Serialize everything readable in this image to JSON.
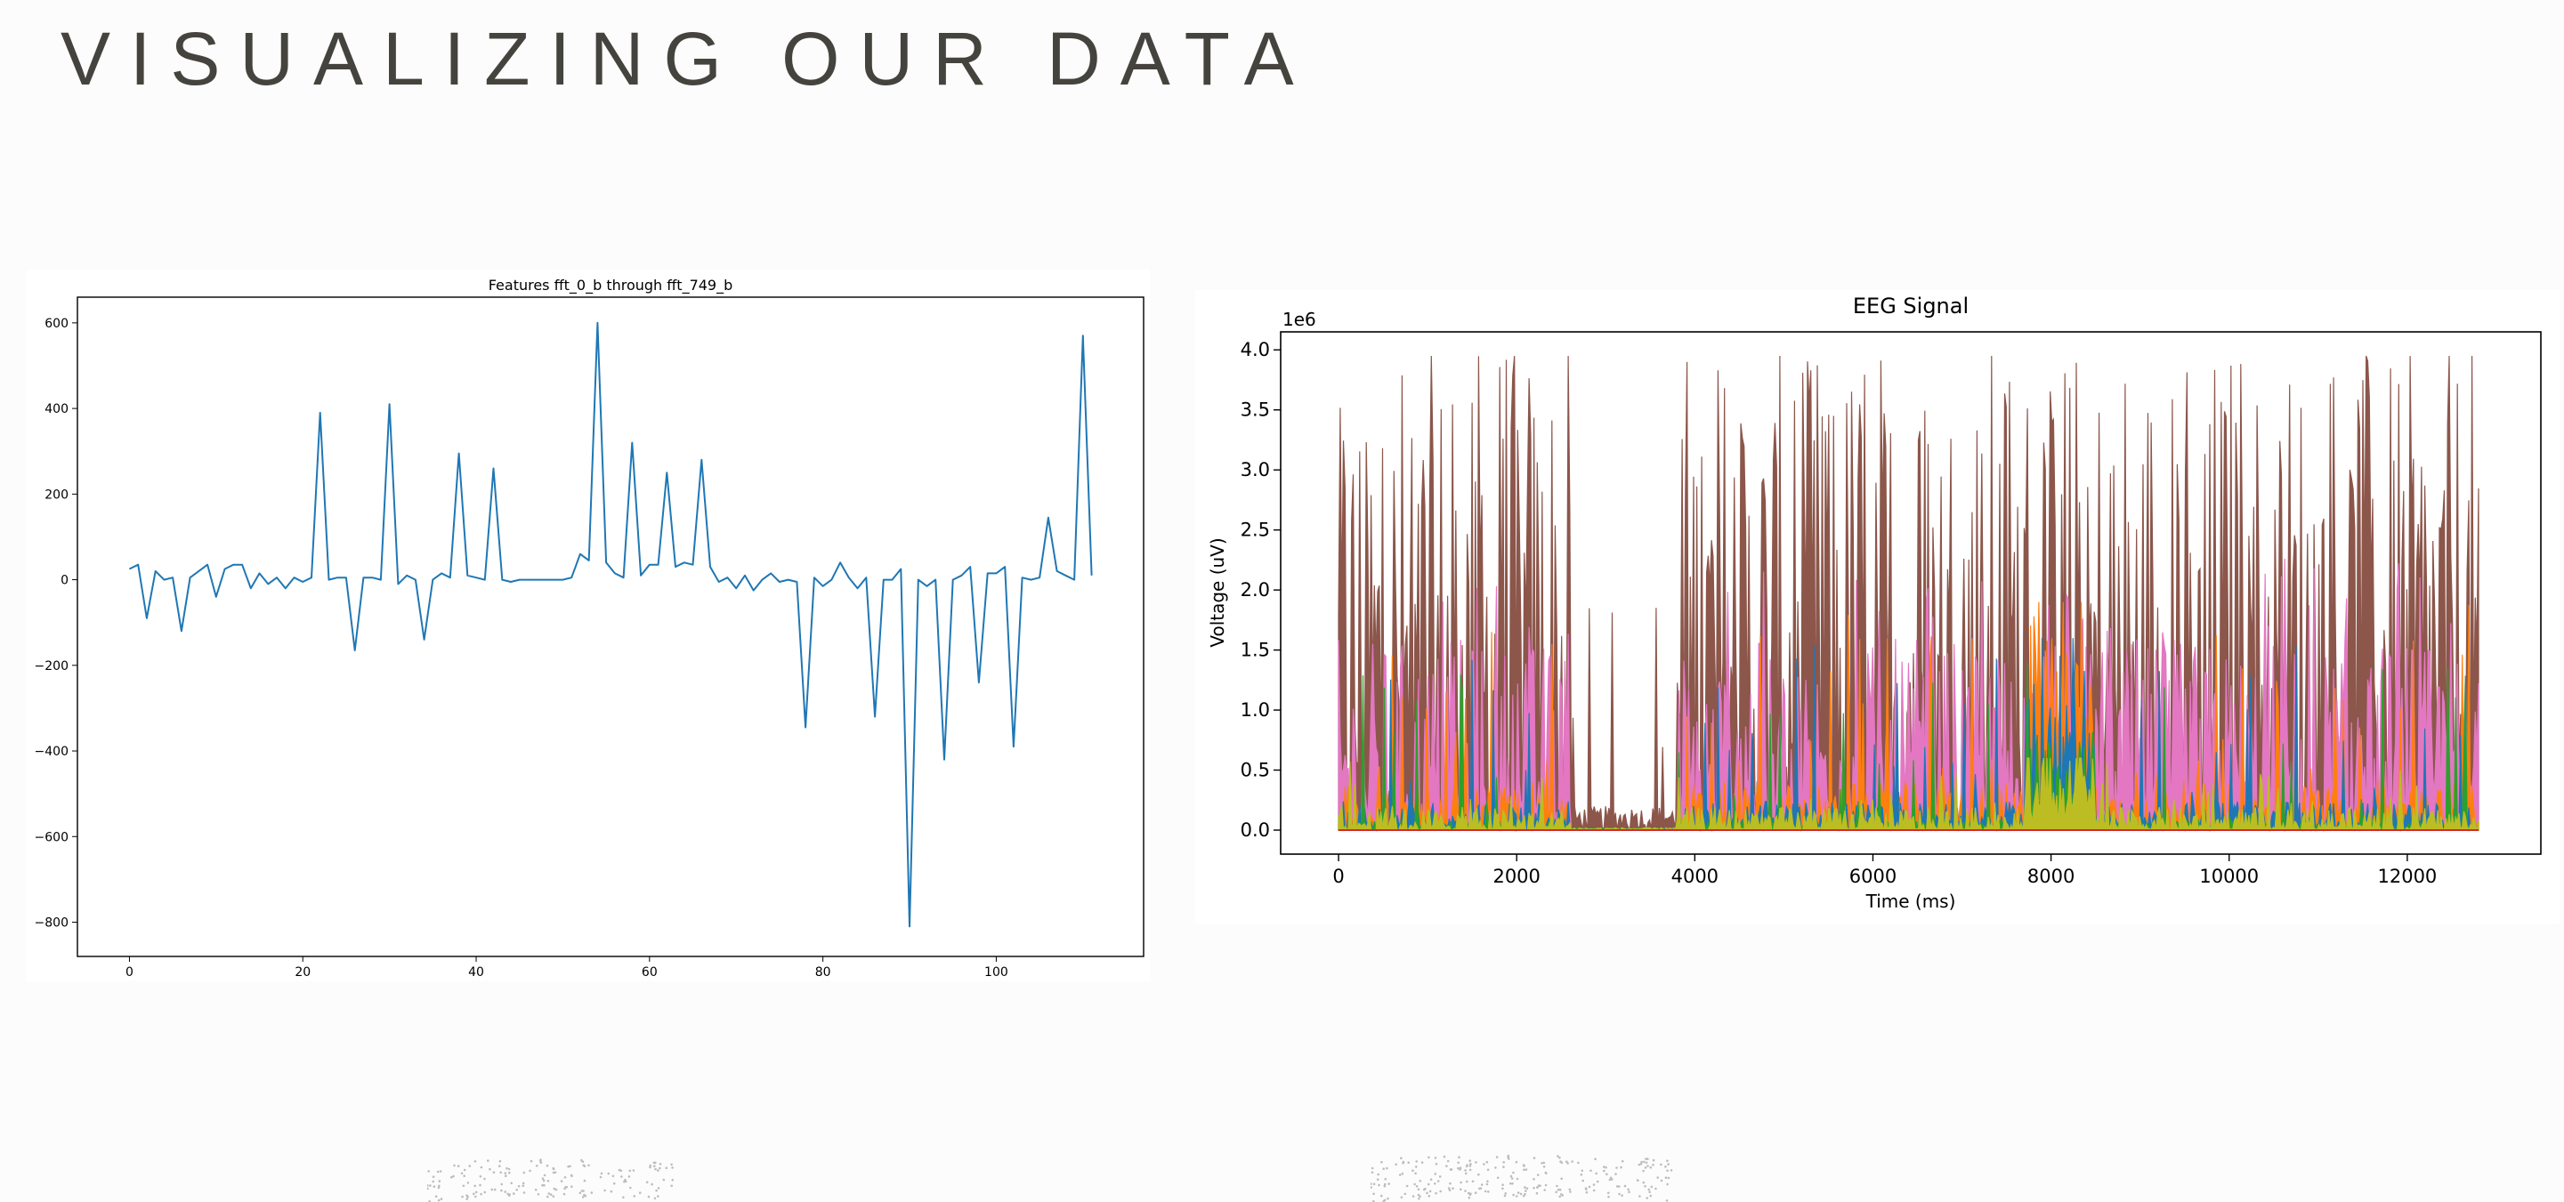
{
  "slide": {
    "title": "VISUALIZING OUR DATA"
  },
  "colors": {
    "background": "#fcfcfc",
    "title": "#45433e",
    "line_series": "#1f77b4",
    "eeg": [
      "#8c564b",
      "#e377c2",
      "#ff7f0e",
      "#1f77b4",
      "#2ca02c",
      "#bcbd22",
      "#17becf",
      "#d62728"
    ]
  },
  "chart_data": [
    {
      "type": "line",
      "title": "Features fft_0_b through fft_749_b",
      "xlabel": "",
      "ylabel": "",
      "xlim": [
        -6,
        117
      ],
      "ylim": [
        -880,
        660
      ],
      "xticks": [
        0,
        20,
        40,
        60,
        80,
        100
      ],
      "yticks": [
        600,
        400,
        200,
        0,
        -200,
        -400,
        -600,
        -800
      ],
      "grid": false,
      "x": [
        0,
        1,
        2,
        3,
        4,
        5,
        6,
        7,
        8,
        9,
        10,
        11,
        12,
        13,
        14,
        15,
        16,
        17,
        18,
        19,
        20,
        21,
        22,
        23,
        24,
        25,
        26,
        27,
        28,
        29,
        30,
        31,
        32,
        33,
        34,
        35,
        36,
        37,
        38,
        39,
        40,
        41,
        42,
        43,
        44,
        45,
        46,
        47,
        48,
        49,
        50,
        51,
        52,
        53,
        54,
        55,
        56,
        57,
        58,
        59,
        60,
        61,
        62,
        63,
        64,
        65,
        66,
        67,
        68,
        69,
        70,
        71,
        72,
        73,
        74,
        75,
        76,
        77,
        78,
        79,
        80,
        81,
        82,
        83,
        84,
        85,
        86,
        87,
        88,
        89,
        90,
        91,
        92,
        93,
        94,
        95,
        96,
        97,
        98,
        99,
        100,
        101,
        102,
        103,
        104,
        105,
        106,
        107,
        108,
        109,
        110,
        111
      ],
      "series": [
        {
          "values": [
            25,
            35,
            -90,
            20,
            0,
            5,
            -120,
            5,
            20,
            35,
            -40,
            25,
            35,
            35,
            -20,
            15,
            -10,
            5,
            -20,
            5,
            -5,
            5,
            390,
            0,
            5,
            5,
            -165,
            5,
            5,
            0,
            410,
            -10,
            10,
            0,
            -140,
            0,
            15,
            5,
            295,
            10,
            5,
            0,
            260,
            0,
            -5,
            0,
            0,
            0,
            0,
            0,
            0,
            5,
            60,
            45,
            600,
            40,
            15,
            5,
            320,
            10,
            35,
            35,
            250,
            30,
            40,
            35,
            280,
            30,
            -5,
            5,
            -20,
            10,
            -25,
            0,
            15,
            -5,
            0,
            -5,
            -345,
            5,
            -15,
            0,
            40,
            5,
            -20,
            5,
            -320,
            0,
            0,
            25,
            -810,
            0,
            -15,
            0,
            -420,
            0,
            10,
            30,
            -240,
            15,
            15,
            30,
            -390,
            5,
            0,
            5,
            145,
            20,
            10,
            0,
            570,
            10
          ]
        }
      ]
    },
    {
      "type": "area",
      "title": "EEG Signal",
      "xlabel": "Time (ms)",
      "ylabel": "Voltage (uV)",
      "y_offset_label": "1e6",
      "xlim": [
        -650,
        13500
      ],
      "ylim": [
        -0.2,
        4.15
      ],
      "xticks": [
        0,
        2000,
        4000,
        6000,
        8000,
        10000,
        12000
      ],
      "yticks": [
        "0.0",
        "0.5",
        "1.0",
        "1.5",
        "2.0",
        "2.5",
        "3.0",
        "3.5",
        "4.0"
      ],
      "ytick_values": [
        0,
        0.5,
        1.0,
        1.5,
        2.0,
        2.5,
        3.0,
        3.5,
        4.0
      ],
      "grid": false,
      "x_range": [
        0,
        12800
      ],
      "active_segments_ms": [
        [
          0,
          2600
        ],
        [
          3800,
          12800
        ]
      ],
      "series": [
        {
          "color": "#8c564b",
          "typical_peak": 2.6,
          "max": 3.95
        },
        {
          "color": "#e377c2",
          "typical_peak": 1.0,
          "max": 2.3
        },
        {
          "color": "#ff7f0e",
          "typical_peak": 0.25,
          "max": 1.9
        },
        {
          "color": "#1f77b4",
          "typical_peak": 0.15,
          "max": 1.6
        },
        {
          "color": "#2ca02c",
          "typical_peak": 0.05,
          "max": 1.4
        },
        {
          "color": "#bcbd22",
          "typical_peak": 0.12,
          "max": 0.6
        }
      ]
    }
  ]
}
